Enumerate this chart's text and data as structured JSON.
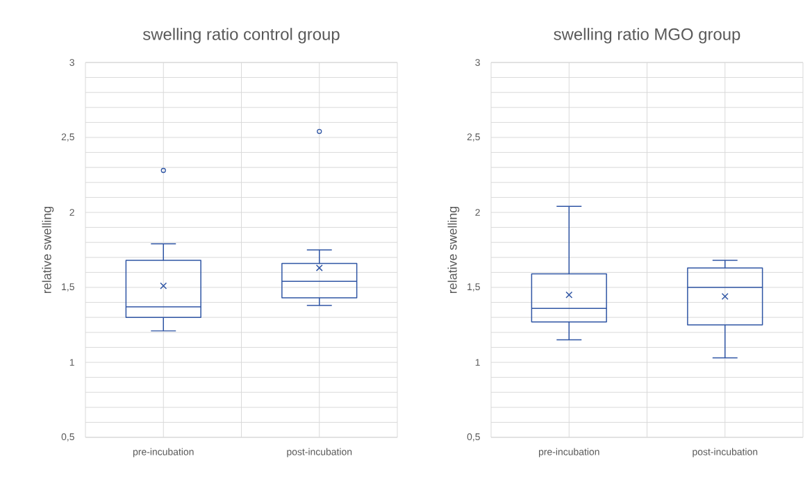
{
  "chart_data": [
    {
      "type": "box",
      "title": "swelling ratio control group",
      "ylabel": "relative swelling",
      "categories": [
        "pre-incubation",
        "post-incubation"
      ],
      "series": [
        {
          "color": "#2f55a4",
          "boxes": [
            {
              "low": 1.21,
              "q1": 1.3,
              "median": 1.37,
              "q3": 1.68,
              "high": 1.79,
              "mean": 1.51,
              "outliers": [
                2.28
              ]
            },
            {
              "low": 1.38,
              "q1": 1.43,
              "median": 1.54,
              "q3": 1.66,
              "high": 1.75,
              "mean": 1.63,
              "outliers": [
                2.54
              ]
            }
          ]
        }
      ],
      "ylim": [
        0.5,
        3
      ],
      "yticks": [
        {
          "value": 0.5,
          "label": "0,5"
        },
        {
          "value": 0.6,
          "label": null
        },
        {
          "value": 0.7,
          "label": null
        },
        {
          "value": 0.8,
          "label": null
        },
        {
          "value": 0.9,
          "label": null
        },
        1,
        {
          "value": 1.1,
          "label": null
        },
        {
          "value": 1.2,
          "label": null
        },
        {
          "value": 1.3,
          "label": null
        },
        {
          "value": 1.4,
          "label": null
        },
        {
          "value": 1.5,
          "label": "1,5"
        },
        {
          "value": 1.6,
          "label": null
        },
        {
          "value": 1.7,
          "label": null
        },
        {
          "value": 1.8,
          "label": null
        },
        {
          "value": 1.9,
          "label": null
        },
        2,
        {
          "value": 2.1,
          "label": null
        },
        {
          "value": 2.2,
          "label": null
        },
        {
          "value": 2.3,
          "label": null
        },
        {
          "value": 2.4,
          "label": null
        },
        {
          "value": 2.5,
          "label": "2,5"
        },
        {
          "value": 2.6,
          "label": null
        },
        {
          "value": 2.7,
          "label": null
        },
        {
          "value": 2.8,
          "label": null
        },
        {
          "value": 2.9,
          "label": null
        },
        3
      ],
      "grid": true
    },
    {
      "type": "box",
      "title": "swelling ratio MGO group",
      "ylabel": "relative swelling",
      "categories": [
        "pre-incubation",
        "post-incubation"
      ],
      "series": [
        {
          "color": "#2f55a4",
          "boxes": [
            {
              "low": 1.15,
              "q1": 1.27,
              "median": 1.36,
              "q3": 1.59,
              "high": 2.04,
              "mean": 1.45
            },
            {
              "low": 1.03,
              "q1": 1.25,
              "median": 1.5,
              "q3": 1.63,
              "high": 1.68,
              "mean": 1.44
            }
          ]
        }
      ],
      "ylim": [
        0.5,
        3
      ],
      "yticks": [
        {
          "value": 0.5,
          "label": "0,5"
        },
        {
          "value": 0.6,
          "label": null
        },
        {
          "value": 0.7,
          "label": null
        },
        {
          "value": 0.8,
          "label": null
        },
        {
          "value": 0.9,
          "label": null
        },
        1,
        {
          "value": 1.1,
          "label": null
        },
        {
          "value": 1.2,
          "label": null
        },
        {
          "value": 1.3,
          "label": null
        },
        {
          "value": 1.4,
          "label": null
        },
        {
          "value": 1.5,
          "label": "1,5"
        },
        {
          "value": 1.6,
          "label": null
        },
        {
          "value": 1.7,
          "label": null
        },
        {
          "value": 1.8,
          "label": null
        },
        {
          "value": 1.9,
          "label": null
        },
        2,
        {
          "value": 2.1,
          "label": null
        },
        {
          "value": 2.2,
          "label": null
        },
        {
          "value": 2.3,
          "label": null
        },
        {
          "value": 2.4,
          "label": null
        },
        {
          "value": 2.5,
          "label": "2,5"
        },
        {
          "value": 2.6,
          "label": null
        },
        {
          "value": 2.7,
          "label": null
        },
        {
          "value": 2.8,
          "label": null
        },
        {
          "value": 2.9,
          "label": null
        },
        3
      ],
      "grid": true
    }
  ]
}
